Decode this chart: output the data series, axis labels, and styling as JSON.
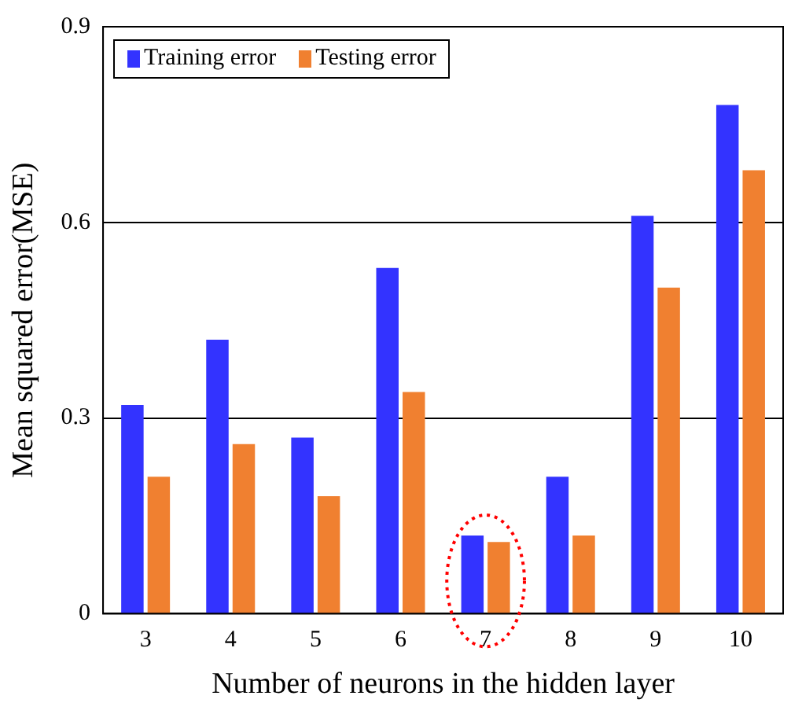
{
  "chart_data": {
    "type": "bar",
    "xlabel": "Number of neurons in the hidden layer",
    "ylabel": "Mean squared error(MSE)",
    "categories": [
      "3",
      "4",
      "5",
      "6",
      "7",
      "8",
      "9",
      "10"
    ],
    "series": [
      {
        "name": "Training error",
        "color": "#3333ff",
        "values": [
          0.32,
          0.42,
          0.27,
          0.53,
          0.12,
          0.21,
          0.61,
          0.78
        ]
      },
      {
        "name": "Testing error",
        "color": "#f08030",
        "values": [
          0.21,
          0.26,
          0.18,
          0.34,
          0.11,
          0.12,
          0.5,
          0.68
        ]
      }
    ],
    "ylim": [
      0,
      0.9
    ],
    "yticks": [
      0,
      0.3,
      0.6,
      0.9
    ],
    "grid": "y",
    "legend": "top left"
  }
}
